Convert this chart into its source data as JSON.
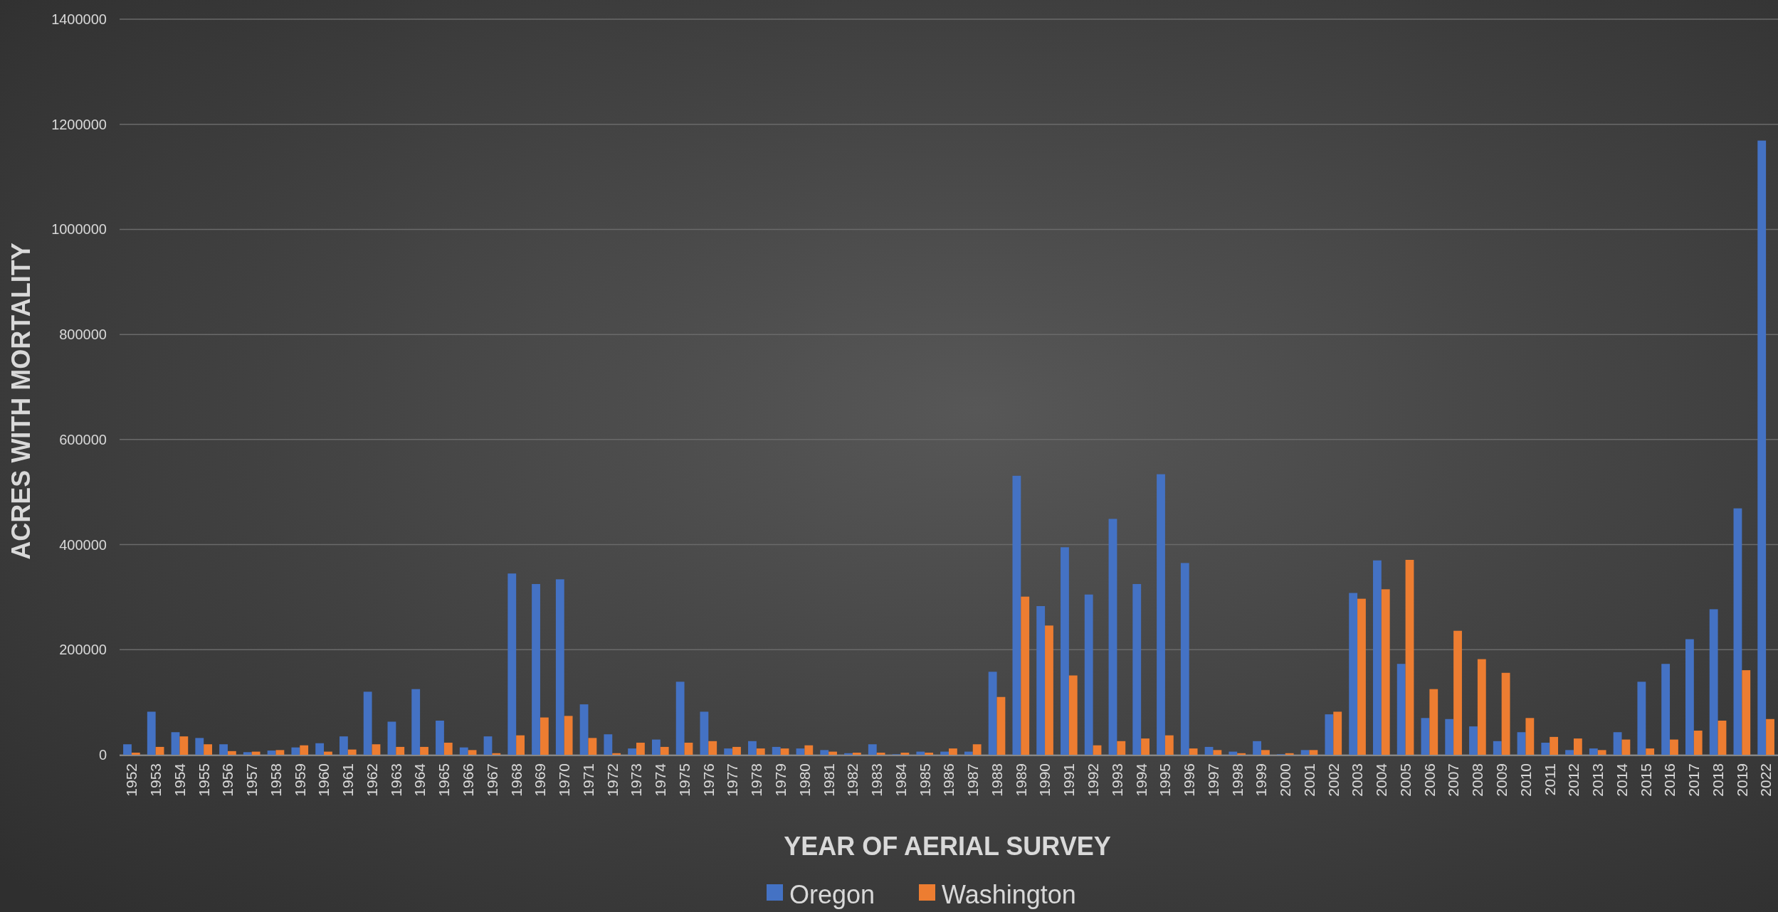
{
  "chart_data": {
    "type": "bar",
    "xlabel": "YEAR OF AERIAL SURVEY",
    "ylabel": "ACRES WITH MORTALITY",
    "categories": [
      "1952",
      "1953",
      "1954",
      "1955",
      "1956",
      "1957",
      "1958",
      "1959",
      "1960",
      "1961",
      "1962",
      "1963",
      "1964",
      "1965",
      "1966",
      "1967",
      "1968",
      "1969",
      "1970",
      "1971",
      "1972",
      "1973",
      "1974",
      "1975",
      "1976",
      "1977",
      "1978",
      "1979",
      "1980",
      "1981",
      "1982",
      "1983",
      "1984",
      "1985",
      "1986",
      "1987",
      "1988",
      "1989",
      "1990",
      "1991",
      "1992",
      "1993",
      "1994",
      "1995",
      "1996",
      "1997",
      "1998",
      "1999",
      "2000",
      "2001",
      "2002",
      "2003",
      "2004",
      "2005",
      "2006",
      "2007",
      "2008",
      "2009",
      "2010",
      "2011",
      "2012",
      "2013",
      "2014",
      "2015",
      "2016",
      "2017",
      "2018",
      "2019",
      "2022"
    ],
    "series": [
      {
        "name": "Oregon",
        "color": "#4472c4",
        "values": [
          20000,
          82000,
          43000,
          32000,
          20000,
          5000,
          8000,
          14000,
          22000,
          35000,
          120000,
          63000,
          125000,
          65000,
          14000,
          35000,
          345000,
          325000,
          334000,
          96000,
          39000,
          12000,
          29000,
          139000,
          82000,
          12000,
          26000,
          15000,
          12000,
          9000,
          3000,
          20000,
          1000,
          6000,
          6000,
          6000,
          158000,
          531000,
          283000,
          395000,
          305000,
          449000,
          325000,
          534000,
          365000,
          15000,
          6000,
          26000,
          1000,
          9000,
          77000,
          308000,
          370000,
          173000,
          70000,
          68000,
          54000,
          26000,
          43000,
          23000,
          9000,
          12000,
          43000,
          139000,
          173000,
          220000,
          277000,
          469000,
          1169000
        ]
      },
      {
        "name": "Washington",
        "color": "#ed7d31",
        "values": [
          4000,
          15000,
          35000,
          20000,
          7000,
          6000,
          9000,
          18000,
          6000,
          10000,
          20000,
          15000,
          15000,
          23000,
          9000,
          3000,
          37000,
          71000,
          74000,
          32000,
          3000,
          23000,
          15000,
          23000,
          26000,
          15000,
          12000,
          12000,
          18000,
          6000,
          4000,
          4000,
          4000,
          4000,
          12000,
          20000,
          110000,
          301000,
          246000,
          151000,
          18000,
          26000,
          31000,
          37000,
          12000,
          9000,
          3000,
          9000,
          3000,
          9000,
          82000,
          297000,
          315000,
          371000,
          125000,
          236000,
          182000,
          156000,
          70000,
          34000,
          31000,
          9000,
          29000,
          12000,
          29000,
          46000,
          65000,
          161000,
          68000
        ]
      }
    ],
    "ylim": [
      0,
      1400000
    ],
    "yticks": [
      0,
      200000,
      400000,
      600000,
      800000,
      1000000,
      1200000,
      1400000
    ],
    "grid": "y",
    "legend": "bottom"
  }
}
